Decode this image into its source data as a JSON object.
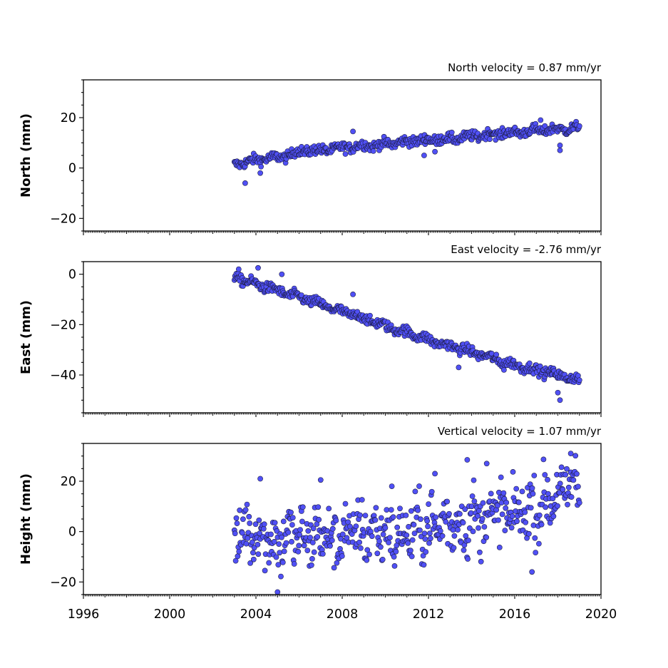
{
  "chart_data": [
    {
      "type": "scatter",
      "title": "North velocity = 0.87 mm/yr",
      "ylabel": "North (mm)",
      "xlim": [
        1996,
        2020
      ],
      "ylim": [
        -25,
        35
      ],
      "yticks": [
        -20,
        0,
        20
      ],
      "x_tick_labels_visible": false,
      "marker_color": "#5050f5",
      "series": [
        {
          "x": [
            2003.0,
            2003.5,
            2004.0,
            2004.5,
            2005.0,
            2005.5,
            2006.0,
            2006.5,
            2007.0,
            2007.5,
            2008.0,
            2008.5,
            2009.0,
            2009.5,
            2010.0,
            2010.5,
            2011.0,
            2011.5,
            2012.0,
            2012.5,
            2013.0,
            2013.5,
            2014.0,
            2014.5,
            2015.0,
            2015.5,
            2016.0,
            2016.5,
            2017.0,
            2017.5,
            2018.0,
            2018.5,
            2019.0
          ],
          "y": [
            1,
            2.5,
            3,
            4,
            4,
            5,
            6.5,
            7,
            7,
            7.5,
            8,
            8.5,
            9,
            9,
            9.5,
            10,
            10.5,
            11,
            11,
            11.5,
            11.5,
            12,
            12.5,
            13,
            13.5,
            14,
            14,
            14.5,
            15,
            15,
            15.5,
            15.5,
            16
          ]
        }
      ],
      "outliers": {
        "x": [
          2003.5,
          2004.2,
          2008.5,
          2011.8,
          2012.3,
          2017.2,
          2018.1,
          2018.1
        ],
        "y": [
          -6,
          -2,
          14.5,
          5,
          6.5,
          19,
          7,
          9
        ]
      }
    },
    {
      "type": "scatter",
      "title": "East velocity = -2.76 mm/yr",
      "ylabel": "East (mm)",
      "xlim": [
        1996,
        2020
      ],
      "ylim": [
        -55,
        5
      ],
      "yticks": [
        -40,
        -20,
        0
      ],
      "x_tick_labels_visible": false,
      "marker_color": "#5050f5",
      "series": [
        {
          "x": [
            2003.0,
            2003.5,
            2004.0,
            2004.5,
            2005.0,
            2005.5,
            2006.0,
            2006.5,
            2007.0,
            2007.5,
            2008.0,
            2008.5,
            2009.0,
            2009.5,
            2010.0,
            2010.5,
            2011.0,
            2011.5,
            2012.0,
            2012.5,
            2013.0,
            2013.5,
            2014.0,
            2014.5,
            2015.0,
            2015.5,
            2016.0,
            2016.5,
            2017.0,
            2017.5,
            2018.0,
            2018.5,
            2019.0
          ],
          "y": [
            -1,
            -2.5,
            -4,
            -5,
            -6.5,
            -8,
            -9,
            -10.5,
            -12,
            -13.5,
            -15,
            -16,
            -17.5,
            -19,
            -20.5,
            -22,
            -23,
            -24.5,
            -26,
            -27.5,
            -28.5,
            -29.5,
            -31,
            -32,
            -33.5,
            -35,
            -36,
            -37,
            -38,
            -39,
            -40,
            -41,
            -42
          ]
        }
      ],
      "outliers": {
        "x": [
          2003.2,
          2004.1,
          2005.2,
          2008.5,
          2013.4,
          2015.5,
          2018.0,
          2018.1
        ],
        "y": [
          2,
          2.5,
          0,
          -8,
          -37,
          -38,
          -47,
          -50
        ]
      }
    },
    {
      "type": "scatter",
      "title": "Vertical velocity = 1.07 mm/yr",
      "ylabel": "Height (mm)",
      "xlim": [
        1996,
        2020
      ],
      "ylim": [
        -25,
        35
      ],
      "yticks": [
        -20,
        0,
        20
      ],
      "xticks": [
        1996,
        2000,
        2004,
        2008,
        2012,
        2016,
        2020
      ],
      "x_tick_labels_visible": true,
      "marker_color": "#5050f5",
      "series": [
        {
          "x": [
            2003.0,
            2003.5,
            2004.0,
            2004.5,
            2005.0,
            2005.5,
            2006.0,
            2006.5,
            2007.0,
            2007.5,
            2008.0,
            2008.5,
            2009.0,
            2009.5,
            2010.0,
            2010.5,
            2011.0,
            2011.5,
            2012.0,
            2012.5,
            2013.0,
            2013.5,
            2014.0,
            2014.5,
            2015.0,
            2015.5,
            2016.0,
            2016.5,
            2017.0,
            2017.5,
            2018.0,
            2018.5,
            2019.0
          ],
          "y": [
            -3,
            0,
            0,
            -2,
            -5,
            -1,
            -2,
            -3,
            0,
            -4,
            -1,
            -1,
            0,
            0,
            0,
            -2,
            -1,
            1,
            2,
            3,
            4,
            3,
            5,
            5,
            8,
            7,
            6,
            9,
            9,
            12,
            15,
            17,
            18
          ]
        }
      ],
      "spread": 6,
      "outliers": {
        "x": [
          2004.2,
          2005.0,
          2007.0,
          2010.3,
          2012.3,
          2013.8,
          2014.7,
          2018.6,
          2016.8
        ],
        "y": [
          21,
          -24,
          20.5,
          18,
          23,
          28.5,
          27,
          31,
          -16
        ]
      }
    }
  ]
}
